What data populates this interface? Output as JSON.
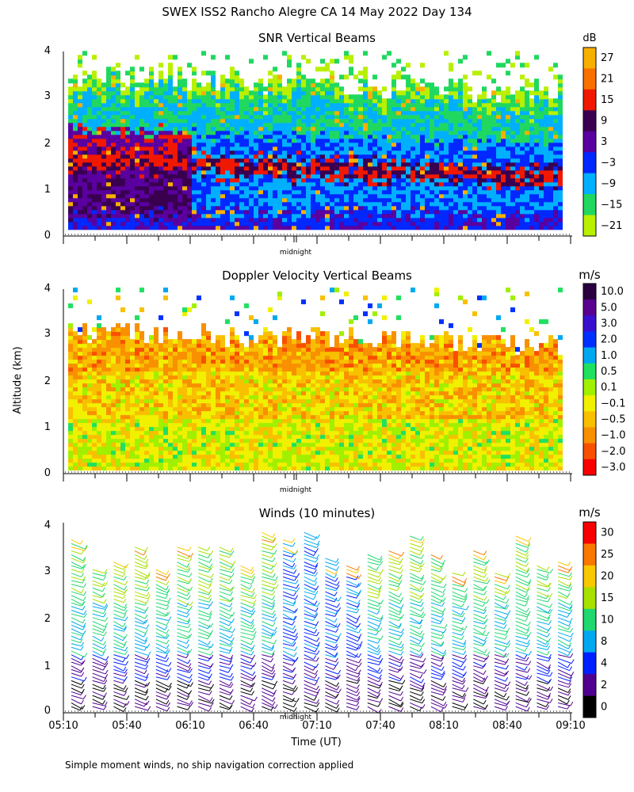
{
  "page_title": "SWEX ISS2 Rancho Alegre CA  14 May 2022 Day 134",
  "y_axis_label": "Altitude (km)",
  "x_axis_label": "Time (UT)",
  "footnote": "Simple moment winds, no ship navigation correction applied",
  "midnight_label": "midnight",
  "x_ticks": [
    "05:10",
    "05:40",
    "06:10",
    "06:40",
    "07:10",
    "07:40",
    "08:10",
    "08:40",
    "09:10"
  ],
  "chart_data": [
    {
      "type": "heatmap",
      "title": "SNR Vertical Beams",
      "xlabel": "Time (UT)",
      "ylabel": "Altitude (km)",
      "xlim": [
        "05:10",
        "09:10"
      ],
      "ylim": [
        0,
        4
      ],
      "y_ticks": [
        "0",
        "1",
        "2",
        "3",
        "4"
      ],
      "colorbar": {
        "unit": "dB",
        "labels": [
          "27",
          "21",
          "15",
          "9",
          "3",
          "−3",
          "−9",
          "−15",
          "−21"
        ],
        "colors": [
          "#f8b000",
          "#f87000",
          "#f01800",
          "#3a0050",
          "#5a00a0",
          "#0028ff",
          "#00b0ff",
          "#20d860",
          "#b8f000"
        ]
      }
    },
    {
      "type": "heatmap",
      "title": "Doppler Velocity Vertical Beams",
      "xlabel": "Time (UT)",
      "ylabel": "Altitude (km)",
      "xlim": [
        "05:10",
        "09:10"
      ],
      "ylim": [
        0,
        4
      ],
      "y_ticks": [
        "0",
        "1",
        "2",
        "3",
        "4"
      ],
      "colorbar": {
        "unit": "m/s",
        "labels": [
          "10.0",
          "5.0",
          "3.0",
          "2.0",
          "1.0",
          "0.5",
          "0.1",
          "−0.1",
          "−0.5",
          "−1.0",
          "−2.0",
          "−3.0"
        ],
        "colors": [
          "#2a0040",
          "#5a0090",
          "#3a10d0",
          "#0030ff",
          "#00a8f0",
          "#20e060",
          "#a0f000",
          "#f0f000",
          "#f8c000",
          "#f89000",
          "#f85000",
          "#f80000"
        ]
      }
    },
    {
      "type": "wind_barbs",
      "title": "Winds (10 minutes)",
      "xlabel": "Time (UT)",
      "ylabel": "Altitude (km)",
      "xlim": [
        "05:10",
        "09:10"
      ],
      "ylim": [
        0,
        4
      ],
      "y_ticks": [
        "0",
        "1",
        "2",
        "3",
        "4"
      ],
      "colorbar": {
        "unit": "m/s",
        "labels": [
          "30",
          "25",
          "20",
          "15",
          "10",
          "8",
          "4",
          "2",
          "0"
        ],
        "colors": [
          "#f80000",
          "#f87800",
          "#f8c800",
          "#a8e000",
          "#20d870",
          "#00a8f0",
          "#0020ff",
          "#500090",
          "#000000"
        ]
      }
    }
  ]
}
